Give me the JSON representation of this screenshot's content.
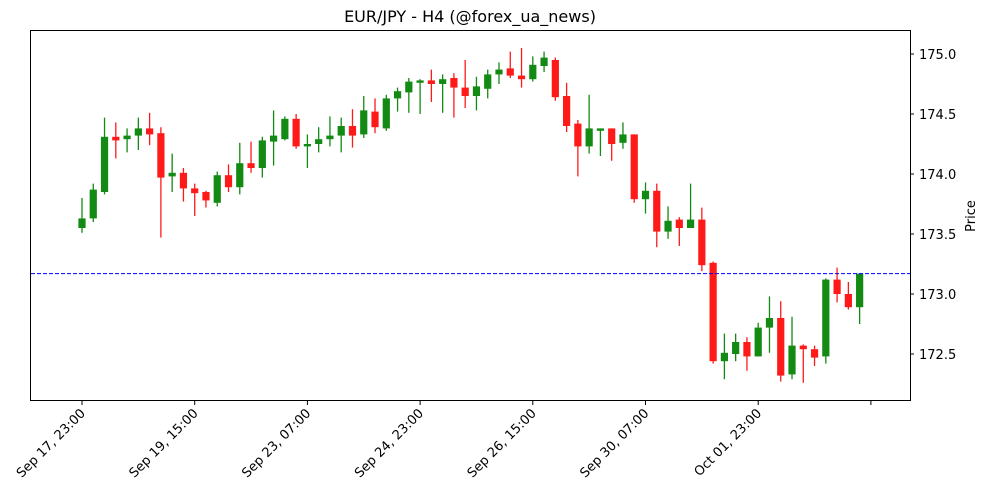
{
  "chart_data": {
    "type": "candlestick",
    "title": "EUR/JPY - H4 (@forex_ua_news)",
    "xlabel": "",
    "ylabel": "Price",
    "ylim": [
      172.12,
      175.2
    ],
    "yticks": [
      172.5,
      173.0,
      173.5,
      174.0,
      174.5,
      175.0
    ],
    "ytick_labels": [
      "172.5",
      "173.0",
      "173.5",
      "174.0",
      "174.5",
      "175.0"
    ],
    "xtick_indices": [
      0,
      10,
      20,
      30,
      40,
      50,
      60,
      70
    ],
    "xtick_labels": [
      "Sep 17, 23:00",
      "Sep 19, 15:00",
      "Sep 23, 07:00",
      "Sep 24, 23:00",
      "Sep 26, 15:00",
      "Sep 30, 07:00",
      "Oct 01, 23:00",
      ""
    ],
    "y_axis_side": "right",
    "grid": false,
    "hline": {
      "value": 173.17,
      "color": "#0000ff",
      "style": "dashed"
    },
    "colors": {
      "up": "#138a13",
      "down": "#ff1a1a"
    },
    "candles": [
      {
        "o": 173.55,
        "h": 173.8,
        "l": 173.51,
        "c": 173.63
      },
      {
        "o": 173.63,
        "h": 173.92,
        "l": 173.6,
        "c": 173.87
      },
      {
        "o": 173.85,
        "h": 174.47,
        "l": 173.83,
        "c": 174.31
      },
      {
        "o": 174.31,
        "h": 174.43,
        "l": 174.13,
        "c": 174.28
      },
      {
        "o": 174.29,
        "h": 174.38,
        "l": 174.18,
        "c": 174.32
      },
      {
        "o": 174.32,
        "h": 174.47,
        "l": 174.2,
        "c": 174.38
      },
      {
        "o": 174.38,
        "h": 174.51,
        "l": 174.24,
        "c": 174.33
      },
      {
        "o": 174.34,
        "h": 174.39,
        "l": 173.47,
        "c": 173.97
      },
      {
        "o": 173.98,
        "h": 174.17,
        "l": 173.85,
        "c": 174.01
      },
      {
        "o": 174.01,
        "h": 174.05,
        "l": 173.77,
        "c": 173.88
      },
      {
        "o": 173.88,
        "h": 173.92,
        "l": 173.65,
        "c": 173.84
      },
      {
        "o": 173.85,
        "h": 173.86,
        "l": 173.72,
        "c": 173.78
      },
      {
        "o": 173.76,
        "h": 174.02,
        "l": 173.73,
        "c": 173.99
      },
      {
        "o": 173.99,
        "h": 174.08,
        "l": 173.85,
        "c": 173.89
      },
      {
        "o": 173.89,
        "h": 174.26,
        "l": 173.83,
        "c": 174.09
      },
      {
        "o": 174.09,
        "h": 174.27,
        "l": 174.01,
        "c": 174.05
      },
      {
        "o": 174.05,
        "h": 174.31,
        "l": 173.97,
        "c": 174.28
      },
      {
        "o": 174.27,
        "h": 174.53,
        "l": 174.07,
        "c": 174.32
      },
      {
        "o": 174.29,
        "h": 174.48,
        "l": 174.28,
        "c": 174.46
      },
      {
        "o": 174.46,
        "h": 174.5,
        "l": 174.21,
        "c": 174.23
      },
      {
        "o": 174.23,
        "h": 174.33,
        "l": 174.05,
        "c": 174.25
      },
      {
        "o": 174.25,
        "h": 174.39,
        "l": 174.18,
        "c": 174.29
      },
      {
        "o": 174.29,
        "h": 174.48,
        "l": 174.23,
        "c": 174.32
      },
      {
        "o": 174.32,
        "h": 174.47,
        "l": 174.18,
        "c": 174.4
      },
      {
        "o": 174.4,
        "h": 174.54,
        "l": 174.22,
        "c": 174.32
      },
      {
        "o": 174.33,
        "h": 174.65,
        "l": 174.3,
        "c": 174.53
      },
      {
        "o": 174.52,
        "h": 174.63,
        "l": 174.34,
        "c": 174.39
      },
      {
        "o": 174.38,
        "h": 174.66,
        "l": 174.36,
        "c": 174.63
      },
      {
        "o": 174.63,
        "h": 174.72,
        "l": 174.52,
        "c": 174.69
      },
      {
        "o": 174.68,
        "h": 174.8,
        "l": 174.51,
        "c": 174.77
      },
      {
        "o": 174.76,
        "h": 174.79,
        "l": 174.5,
        "c": 174.78
      },
      {
        "o": 174.78,
        "h": 174.87,
        "l": 174.6,
        "c": 174.75
      },
      {
        "o": 174.75,
        "h": 174.83,
        "l": 174.51,
        "c": 174.79
      },
      {
        "o": 174.8,
        "h": 174.84,
        "l": 174.47,
        "c": 174.72
      },
      {
        "o": 174.72,
        "h": 174.95,
        "l": 174.55,
        "c": 174.65
      },
      {
        "o": 174.65,
        "h": 174.81,
        "l": 174.53,
        "c": 174.73
      },
      {
        "o": 174.71,
        "h": 174.87,
        "l": 174.63,
        "c": 174.83
      },
      {
        "o": 174.83,
        "h": 174.93,
        "l": 174.75,
        "c": 174.87
      },
      {
        "o": 174.88,
        "h": 175.02,
        "l": 174.8,
        "c": 174.82
      },
      {
        "o": 174.82,
        "h": 175.05,
        "l": 174.72,
        "c": 174.79
      },
      {
        "o": 174.79,
        "h": 174.98,
        "l": 174.77,
        "c": 174.91
      },
      {
        "o": 174.9,
        "h": 175.02,
        "l": 174.85,
        "c": 174.97
      },
      {
        "o": 174.95,
        "h": 174.97,
        "l": 174.61,
        "c": 174.64
      },
      {
        "o": 174.65,
        "h": 174.76,
        "l": 174.35,
        "c": 174.4
      },
      {
        "o": 174.42,
        "h": 174.45,
        "l": 173.98,
        "c": 174.23
      },
      {
        "o": 174.23,
        "h": 174.66,
        "l": 174.17,
        "c": 174.38
      },
      {
        "o": 174.36,
        "h": 174.38,
        "l": 174.15,
        "c": 174.38
      },
      {
        "o": 174.38,
        "h": 174.38,
        "l": 174.11,
        "c": 174.25
      },
      {
        "o": 174.26,
        "h": 174.43,
        "l": 174.21,
        "c": 174.33
      },
      {
        "o": 174.33,
        "h": 174.33,
        "l": 173.76,
        "c": 173.79
      },
      {
        "o": 173.79,
        "h": 173.93,
        "l": 173.67,
        "c": 173.86
      },
      {
        "o": 173.86,
        "h": 173.92,
        "l": 173.39,
        "c": 173.52
      },
      {
        "o": 173.52,
        "h": 173.73,
        "l": 173.46,
        "c": 173.61
      },
      {
        "o": 173.62,
        "h": 173.64,
        "l": 173.4,
        "c": 173.55
      },
      {
        "o": 173.55,
        "h": 173.92,
        "l": 173.55,
        "c": 173.62
      },
      {
        "o": 173.62,
        "h": 173.72,
        "l": 173.19,
        "c": 173.24
      },
      {
        "o": 173.26,
        "h": 173.27,
        "l": 172.42,
        "c": 172.44
      },
      {
        "o": 172.44,
        "h": 172.67,
        "l": 172.29,
        "c": 172.51
      },
      {
        "o": 172.5,
        "h": 172.67,
        "l": 172.44,
        "c": 172.6
      },
      {
        "o": 172.6,
        "h": 172.64,
        "l": 172.36,
        "c": 172.48
      },
      {
        "o": 172.48,
        "h": 172.76,
        "l": 172.48,
        "c": 172.72
      },
      {
        "o": 172.72,
        "h": 172.98,
        "l": 172.51,
        "c": 172.8
      },
      {
        "o": 172.8,
        "h": 172.94,
        "l": 172.27,
        "c": 172.32
      },
      {
        "o": 172.33,
        "h": 172.81,
        "l": 172.29,
        "c": 172.57
      },
      {
        "o": 172.57,
        "h": 172.58,
        "l": 172.26,
        "c": 172.54
      },
      {
        "o": 172.54,
        "h": 172.57,
        "l": 172.4,
        "c": 172.47
      },
      {
        "o": 172.48,
        "h": 173.13,
        "l": 172.42,
        "c": 173.12
      },
      {
        "o": 173.12,
        "h": 173.22,
        "l": 172.93,
        "c": 173.0
      },
      {
        "o": 173.0,
        "h": 173.1,
        "l": 172.87,
        "c": 172.89
      },
      {
        "o": 172.89,
        "h": 173.17,
        "l": 172.75,
        "c": 173.17
      }
    ]
  }
}
